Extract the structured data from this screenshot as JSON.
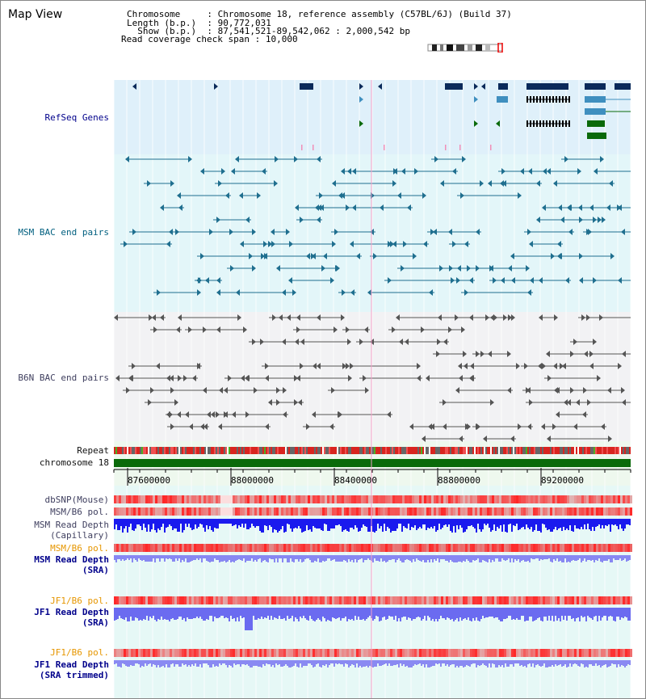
{
  "view_title": "Map View",
  "info": {
    "chromosome_key": "Chromosome     ",
    "chromosome_val": "Chromosome 18, reference assembly (C57BL/6J) (Build 37)",
    "length_key": "Length (b.p.)  ",
    "length_val": "90,772,031",
    "show_key": "  Show (b.p.)  ",
    "show_val": "87,541,521-89,542,062 : 2,000,542 bp",
    "coverage_key": "Read coverage check span",
    "coverage_val": "10,000"
  },
  "tracks": {
    "refseq": "RefSeq Genes",
    "msm_bac": "MSM BAC end pairs",
    "b6n_bac": "B6N BAC end pairs",
    "repeat": "Repeat",
    "chromosome": "chromosome 18",
    "dbsnp": "dbSNP(Mouse)",
    "msm_b6_pol_1": "MSM/B6 pol.",
    "msm_read_depth_cap_1": "MSM Read Depth",
    "msm_read_depth_cap_2": "(Capillary)",
    "msm_b6_pol_2": "MSM/B6 pol.",
    "msm_read_depth_sra_1": "MSM Read Depth",
    "msm_read_depth_sra_2": "(SRA)",
    "jf1_b6_pol_1": "JF1/B6 pol.",
    "jf1_read_depth_sra_1": "JF1 Read Depth",
    "jf1_read_depth_sra_2": "(SRA)",
    "jf1_b6_pol_2": "JF1/B6 pol.",
    "jf1_read_depth_trim_1": "JF1 Read Depth",
    "jf1_read_depth_trim_2": "(SRA trimmed)"
  },
  "axis_ticks": [
    "87600000",
    "88000000",
    "88400000",
    "88800000",
    "89200000"
  ],
  "colors": {
    "refseq_bg": "#dff0fa",
    "msm_bg": "#e3f6f9",
    "b6n_bg": "#f2f2f4",
    "lower_bg": "#eef8ee",
    "gene_navy": "#0a2a5a",
    "gene_blue": "#3f8fbf",
    "gene_green": "#0a6a0a",
    "bac_teal": "#1f6f8f",
    "bac_gray": "#555555",
    "chrom_green": "#0a6a0a",
    "depth_blue": "#2a2aee",
    "depth_light": "#7070ee",
    "pol_red": "#e23c3c"
  }
}
